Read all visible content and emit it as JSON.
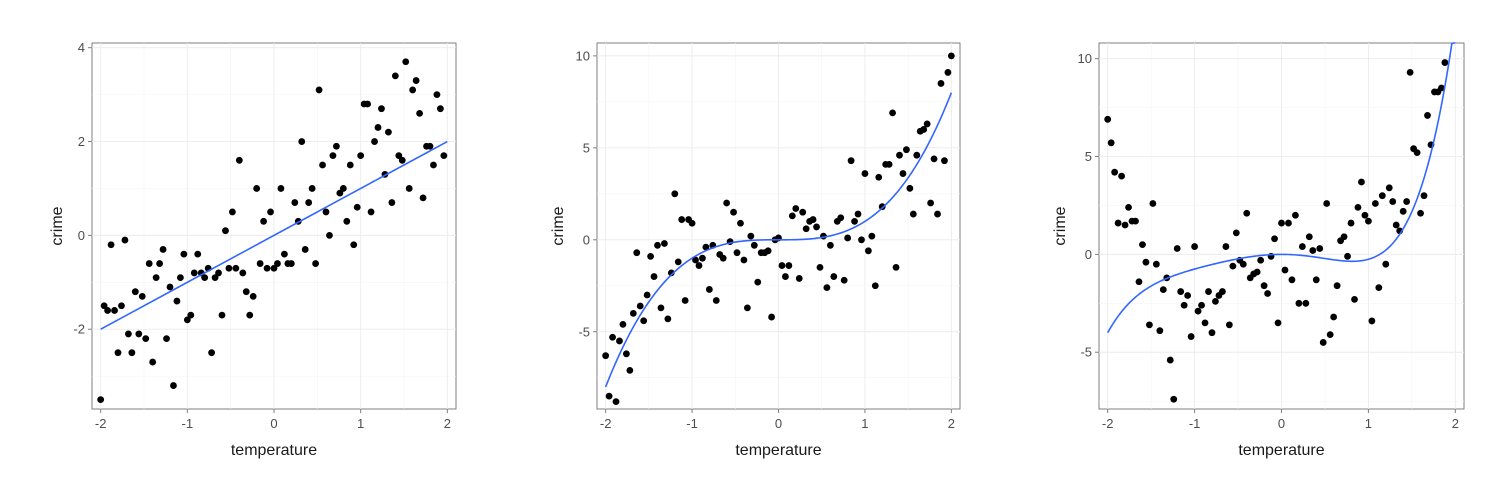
{
  "chart_data": [
    {
      "type": "scatter",
      "xlabel": "temperature",
      "ylabel": "crime",
      "xlim": [
        -2.1,
        2.1
      ],
      "ylim": [
        -3.7,
        4.1
      ],
      "xticks": [
        -2,
        -1,
        0,
        1,
        2
      ],
      "yticks": [
        -2,
        0,
        2,
        4
      ],
      "xtick_labels": [
        "-2",
        "-1",
        "0",
        "1",
        "2"
      ],
      "ytick_labels": [
        "-2",
        "0",
        "2",
        "4"
      ],
      "grid": true,
      "fit": {
        "kind": "linear",
        "color": "#3366ff",
        "x": [
          -2,
          2
        ],
        "y": [
          -2,
          2
        ]
      },
      "points": [
        [
          -2.0,
          -3.5
        ],
        [
          -1.96,
          -1.5
        ],
        [
          -1.92,
          -1.6
        ],
        [
          -1.88,
          -0.2
        ],
        [
          -1.84,
          -1.6
        ],
        [
          -1.8,
          -2.5
        ],
        [
          -1.76,
          -1.5
        ],
        [
          -1.72,
          -0.1
        ],
        [
          -1.68,
          -2.1
        ],
        [
          -1.64,
          -2.5
        ],
        [
          -1.6,
          -1.2
        ],
        [
          -1.56,
          -2.1
        ],
        [
          -1.52,
          -1.3
        ],
        [
          -1.48,
          -2.2
        ],
        [
          -1.44,
          -0.6
        ],
        [
          -1.4,
          -2.7
        ],
        [
          -1.36,
          -0.9
        ],
        [
          -1.32,
          -0.6
        ],
        [
          -1.28,
          -0.3
        ],
        [
          -1.24,
          -2.2
        ],
        [
          -1.2,
          -1.1
        ],
        [
          -1.16,
          -3.2
        ],
        [
          -1.12,
          -1.4
        ],
        [
          -1.08,
          -0.9
        ],
        [
          -1.04,
          -0.4
        ],
        [
          -1.0,
          -1.8
        ],
        [
          -0.96,
          -1.7
        ],
        [
          -0.92,
          -0.8
        ],
        [
          -0.88,
          -0.4
        ],
        [
          -0.84,
          -0.8
        ],
        [
          -0.8,
          -0.9
        ],
        [
          -0.76,
          -0.7
        ],
        [
          -0.72,
          -2.5
        ],
        [
          -0.68,
          -0.9
        ],
        [
          -0.64,
          -0.8
        ],
        [
          -0.6,
          -1.7
        ],
        [
          -0.56,
          0.1
        ],
        [
          -0.52,
          -0.7
        ],
        [
          -0.48,
          0.5
        ],
        [
          -0.44,
          -0.7
        ],
        [
          -0.4,
          1.6
        ],
        [
          -0.36,
          -0.8
        ],
        [
          -0.32,
          -1.2
        ],
        [
          -0.28,
          -1.7
        ],
        [
          -0.24,
          -1.3
        ],
        [
          -0.2,
          1.0
        ],
        [
          -0.16,
          -0.6
        ],
        [
          -0.12,
          0.3
        ],
        [
          -0.08,
          -0.7
        ],
        [
          -0.04,
          0.5
        ],
        [
          0.0,
          -0.7
        ],
        [
          0.04,
          -0.6
        ],
        [
          0.08,
          1.0
        ],
        [
          0.12,
          -0.4
        ],
        [
          0.16,
          -0.6
        ],
        [
          0.2,
          -0.6
        ],
        [
          0.24,
          0.7
        ],
        [
          0.28,
          0.3
        ],
        [
          0.32,
          2.0
        ],
        [
          0.36,
          -0.3
        ],
        [
          0.4,
          0.7
        ],
        [
          0.44,
          1.0
        ],
        [
          0.48,
          -0.6
        ],
        [
          0.52,
          3.1
        ],
        [
          0.56,
          1.5
        ],
        [
          0.6,
          0.5
        ],
        [
          0.64,
          0.0
        ],
        [
          0.68,
          1.7
        ],
        [
          0.72,
          1.9
        ],
        [
          0.76,
          0.9
        ],
        [
          0.8,
          1.0
        ],
        [
          0.84,
          0.3
        ],
        [
          0.88,
          1.5
        ],
        [
          0.92,
          -0.2
        ],
        [
          0.96,
          0.6
        ],
        [
          1.0,
          1.7
        ],
        [
          1.04,
          2.8
        ],
        [
          1.08,
          2.8
        ],
        [
          1.12,
          0.5
        ],
        [
          1.16,
          2.0
        ],
        [
          1.2,
          2.3
        ],
        [
          1.24,
          2.7
        ],
        [
          1.28,
          1.3
        ],
        [
          1.32,
          2.2
        ],
        [
          1.36,
          0.7
        ],
        [
          1.4,
          3.4
        ],
        [
          1.44,
          1.7
        ],
        [
          1.48,
          1.6
        ],
        [
          1.52,
          3.7
        ],
        [
          1.56,
          1.0
        ],
        [
          1.6,
          3.1
        ],
        [
          1.64,
          3.3
        ],
        [
          1.68,
          2.6
        ],
        [
          1.72,
          0.8
        ],
        [
          1.76,
          1.9
        ],
        [
          1.8,
          1.9
        ],
        [
          1.84,
          1.5
        ],
        [
          1.88,
          3.0
        ],
        [
          1.92,
          2.7
        ],
        [
          1.96,
          1.7
        ]
      ]
    },
    {
      "type": "scatter",
      "xlabel": "temperature",
      "ylabel": "crime",
      "xlim": [
        -2.1,
        2.1
      ],
      "ylim": [
        -9.2,
        10.7
      ],
      "xticks": [
        -2,
        -1,
        0,
        1,
        2
      ],
      "yticks": [
        -5,
        0,
        5,
        10
      ],
      "xtick_labels": [
        "-2",
        "-1",
        "0",
        "1",
        "2"
      ],
      "ytick_labels": [
        "-5",
        "0",
        "5",
        "10"
      ],
      "grid": true,
      "fit": {
        "kind": "cubic",
        "color": "#3366ff",
        "coefficients": [
          1,
          0,
          0,
          0
        ]
      },
      "points": [
        [
          -2.0,
          -6.3
        ],
        [
          -1.96,
          -8.5
        ],
        [
          -1.92,
          -5.3
        ],
        [
          -1.88,
          -8.8
        ],
        [
          -1.84,
          -5.5
        ],
        [
          -1.8,
          -4.6
        ],
        [
          -1.76,
          -6.2
        ],
        [
          -1.72,
          -7.1
        ],
        [
          -1.68,
          -4.0
        ],
        [
          -1.64,
          -0.7
        ],
        [
          -1.6,
          -3.6
        ],
        [
          -1.56,
          -4.4
        ],
        [
          -1.52,
          -3.0
        ],
        [
          -1.48,
          -0.9
        ],
        [
          -1.44,
          -2.0
        ],
        [
          -1.4,
          -0.3
        ],
        [
          -1.36,
          -3.7
        ],
        [
          -1.32,
          -0.2
        ],
        [
          -1.28,
          -4.3
        ],
        [
          -1.24,
          -1.8
        ],
        [
          -1.2,
          2.5
        ],
        [
          -1.16,
          -1.2
        ],
        [
          -1.12,
          1.1
        ],
        [
          -1.08,
          -3.3
        ],
        [
          -1.04,
          1.1
        ],
        [
          -1.0,
          0.9
        ],
        [
          -0.96,
          -1.1
        ],
        [
          -0.92,
          -1.4
        ],
        [
          -0.88,
          -1.0
        ],
        [
          -0.84,
          -0.4
        ],
        [
          -0.8,
          -2.7
        ],
        [
          -0.76,
          -0.3
        ],
        [
          -0.72,
          -3.3
        ],
        [
          -0.68,
          -0.8
        ],
        [
          -0.64,
          -1.0
        ],
        [
          -0.6,
          2.0
        ],
        [
          -0.56,
          -0.1
        ],
        [
          -0.52,
          1.5
        ],
        [
          -0.48,
          -0.7
        ],
        [
          -0.44,
          0.9
        ],
        [
          -0.4,
          -1.1
        ],
        [
          -0.36,
          -3.7
        ],
        [
          -0.32,
          0.2
        ],
        [
          -0.28,
          -0.3
        ],
        [
          -0.24,
          -2.3
        ],
        [
          -0.2,
          -0.7
        ],
        [
          -0.16,
          -0.7
        ],
        [
          -0.12,
          -0.6
        ],
        [
          -0.08,
          -4.2
        ],
        [
          -0.04,
          0.0
        ],
        [
          0.0,
          0.1
        ],
        [
          0.04,
          -1.4
        ],
        [
          0.08,
          -2.0
        ],
        [
          0.12,
          -1.4
        ],
        [
          0.16,
          1.3
        ],
        [
          0.2,
          1.7
        ],
        [
          0.24,
          -2.1
        ],
        [
          0.28,
          1.5
        ],
        [
          0.32,
          0.6
        ],
        [
          0.36,
          1.0
        ],
        [
          0.4,
          1.1
        ],
        [
          0.44,
          0.7
        ],
        [
          0.48,
          -1.5
        ],
        [
          0.52,
          0.2
        ],
        [
          0.56,
          -2.6
        ],
        [
          0.6,
          -0.3
        ],
        [
          0.64,
          -2.0
        ],
        [
          0.68,
          1.0
        ],
        [
          0.72,
          1.2
        ],
        [
          0.76,
          -2.2
        ],
        [
          0.8,
          0.1
        ],
        [
          0.84,
          4.3
        ],
        [
          0.88,
          1.0
        ],
        [
          0.92,
          1.4
        ],
        [
          0.96,
          0.0
        ],
        [
          1.0,
          3.6
        ],
        [
          1.04,
          -0.6
        ],
        [
          1.08,
          0.2
        ],
        [
          1.12,
          -2.5
        ],
        [
          1.16,
          3.4
        ],
        [
          1.2,
          1.8
        ],
        [
          1.24,
          4.1
        ],
        [
          1.28,
          4.1
        ],
        [
          1.32,
          6.9
        ],
        [
          1.36,
          -1.5
        ],
        [
          1.4,
          4.6
        ],
        [
          1.44,
          3.6
        ],
        [
          1.48,
          4.9
        ],
        [
          1.52,
          2.8
        ],
        [
          1.56,
          1.4
        ],
        [
          1.6,
          4.6
        ],
        [
          1.64,
          5.9
        ],
        [
          1.68,
          6.0
        ],
        [
          1.72,
          6.3
        ],
        [
          1.76,
          2.0
        ],
        [
          1.8,
          4.4
        ],
        [
          1.84,
          1.4
        ],
        [
          1.88,
          8.5
        ],
        [
          1.92,
          4.3
        ],
        [
          1.96,
          9.1
        ],
        [
          2.0,
          10.0
        ]
      ]
    },
    {
      "type": "scatter",
      "xlabel": "temperature",
      "ylabel": "crime",
      "xlim": [
        -2.1,
        2.1
      ],
      "ylim": [
        -7.9,
        10.8
      ],
      "xticks": [
        -2,
        -1,
        0,
        1,
        2
      ],
      "yticks": [
        -5,
        0,
        5,
        10
      ],
      "xtick_labels": [
        "-2",
        "-1",
        "0",
        "1",
        "2"
      ],
      "ytick_labels": [
        "-5",
        "0",
        "5",
        "10"
      ],
      "grid": true,
      "fit": {
        "kind": "quintic",
        "color": "#3366ff",
        "coefficients": [
          0.25,
          0.5,
          0,
          -1,
          0,
          0
        ]
      },
      "points": [
        [
          -2.0,
          6.9
        ],
        [
          -1.96,
          5.7
        ],
        [
          -1.92,
          4.2
        ],
        [
          -1.88,
          1.6
        ],
        [
          -1.84,
          4.0
        ],
        [
          -1.8,
          1.5
        ],
        [
          -1.76,
          2.4
        ],
        [
          -1.72,
          1.7
        ],
        [
          -1.68,
          1.7
        ],
        [
          -1.64,
          -1.4
        ],
        [
          -1.6,
          0.5
        ],
        [
          -1.56,
          -0.4
        ],
        [
          -1.52,
          -3.6
        ],
        [
          -1.48,
          2.6
        ],
        [
          -1.44,
          -0.5
        ],
        [
          -1.4,
          -3.9
        ],
        [
          -1.36,
          -1.8
        ],
        [
          -1.32,
          -1.2
        ],
        [
          -1.28,
          -5.4
        ],
        [
          -1.24,
          -7.4
        ],
        [
          -1.2,
          0.3
        ],
        [
          -1.16,
          -1.9
        ],
        [
          -1.12,
          -2.6
        ],
        [
          -1.08,
          -2.1
        ],
        [
          -1.04,
          -4.2
        ],
        [
          -1.0,
          0.4
        ],
        [
          -0.96,
          -2.9
        ],
        [
          -0.92,
          -2.6
        ],
        [
          -0.88,
          -3.5
        ],
        [
          -0.84,
          -1.9
        ],
        [
          -0.8,
          -4.0
        ],
        [
          -0.76,
          -2.4
        ],
        [
          -0.72,
          -2.1
        ],
        [
          -0.68,
          -1.9
        ],
        [
          -0.64,
          0.4
        ],
        [
          -0.6,
          -3.6
        ],
        [
          -0.56,
          -0.6
        ],
        [
          -0.52,
          1.1
        ],
        [
          -0.48,
          -0.3
        ],
        [
          -0.44,
          -0.5
        ],
        [
          -0.4,
          2.1
        ],
        [
          -0.36,
          -1.2
        ],
        [
          -0.32,
          -1.0
        ],
        [
          -0.28,
          -0.9
        ],
        [
          -0.24,
          -0.3
        ],
        [
          -0.2,
          -1.6
        ],
        [
          -0.16,
          -2.0
        ],
        [
          -0.12,
          -0.1
        ],
        [
          -0.08,
          0.8
        ],
        [
          -0.04,
          -3.5
        ],
        [
          0.0,
          1.6
        ],
        [
          0.04,
          -0.8
        ],
        [
          0.08,
          1.6
        ],
        [
          0.12,
          -1.3
        ],
        [
          0.16,
          2.0
        ],
        [
          0.2,
          -2.5
        ],
        [
          0.24,
          0.4
        ],
        [
          0.28,
          -2.5
        ],
        [
          0.32,
          0.9
        ],
        [
          0.36,
          0.2
        ],
        [
          0.4,
          -1.3
        ],
        [
          0.44,
          0.3
        ],
        [
          0.48,
          -4.5
        ],
        [
          0.52,
          2.6
        ],
        [
          0.56,
          -4.1
        ],
        [
          0.6,
          -3.2
        ],
        [
          0.64,
          -1.6
        ],
        [
          0.68,
          0.7
        ],
        [
          0.72,
          0.9
        ],
        [
          0.76,
          -0.1
        ],
        [
          0.8,
          1.6
        ],
        [
          0.84,
          -2.3
        ],
        [
          0.88,
          2.4
        ],
        [
          0.92,
          3.7
        ],
        [
          0.96,
          2.0
        ],
        [
          1.0,
          1.7
        ],
        [
          1.04,
          -3.4
        ],
        [
          1.08,
          2.6
        ],
        [
          1.12,
          -1.7
        ],
        [
          1.16,
          3.0
        ],
        [
          1.2,
          -0.5
        ],
        [
          1.24,
          3.4
        ],
        [
          1.28,
          2.7
        ],
        [
          1.32,
          1.5
        ],
        [
          1.36,
          1.2
        ],
        [
          1.4,
          2.2
        ],
        [
          1.44,
          2.7
        ],
        [
          1.48,
          9.3
        ],
        [
          1.52,
          5.4
        ],
        [
          1.56,
          5.2
        ],
        [
          1.6,
          2.1
        ],
        [
          1.64,
          3.0
        ],
        [
          1.68,
          7.1
        ],
        [
          1.72,
          5.6
        ],
        [
          1.76,
          8.3
        ],
        [
          1.8,
          8.3
        ],
        [
          1.84,
          8.5
        ],
        [
          1.88,
          9.8
        ]
      ]
    }
  ]
}
